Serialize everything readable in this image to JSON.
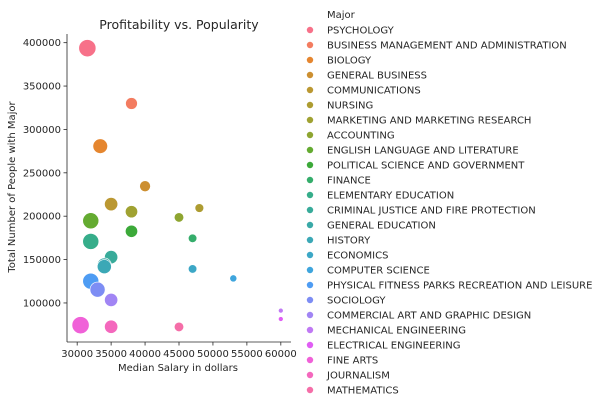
{
  "chart_data": {
    "type": "scatter",
    "title": "Profitability vs. Popularity",
    "xlabel": "Median Salary in dollars",
    "ylabel": "Total Number of People with Major",
    "xlim": [
      28500,
      61500
    ],
    "ylim": [
      55000,
      410000
    ],
    "xticks": [
      "30000",
      "35000",
      "40000",
      "45000",
      "50000",
      "55000",
      "60000"
    ],
    "yticks": [
      "100000",
      "150000",
      "200000",
      "250000",
      "300000",
      "350000",
      "400000"
    ],
    "grid": false,
    "legend_title": "Major",
    "legend_position": "outside-right",
    "series": [
      {
        "name": "PSYCHOLOGY",
        "color": "#f77189",
        "points": [
          {
            "x": 31500,
            "y": 393700,
            "size": 1.0
          }
        ]
      },
      {
        "name": "BUSINESS MANAGEMENT AND ADMINISTRATION",
        "color": "#f37c60",
        "points": [
          {
            "x": 38000,
            "y": 329900,
            "size": 0.62
          }
        ]
      },
      {
        "name": "BIOLOGY",
        "color": "#e5862f",
        "points": [
          {
            "x": 33400,
            "y": 280700,
            "size": 0.82
          }
        ]
      },
      {
        "name": "GENERAL BUSINESS",
        "color": "#cc8f31",
        "points": [
          {
            "x": 40000,
            "y": 234600,
            "size": 0.55
          }
        ]
      },
      {
        "name": "COMMUNICATIONS",
        "color": "#bb9832",
        "points": [
          {
            "x": 35000,
            "y": 213900,
            "size": 0.72
          }
        ]
      },
      {
        "name": "NURSING",
        "color": "#ad9c31",
        "points": [
          {
            "x": 48000,
            "y": 209400,
            "size": 0.4
          }
        ]
      },
      {
        "name": "MARKETING AND MARKETING RESEARCH",
        "color": "#a0a232",
        "points": [
          {
            "x": 38000,
            "y": 205200,
            "size": 0.65
          }
        ]
      },
      {
        "name": "ACCOUNTING",
        "color": "#8ea531",
        "points": [
          {
            "x": 45000,
            "y": 198600,
            "size": 0.45
          }
        ]
      },
      {
        "name": "ENGLISH LANGUAGE AND LITERATURE",
        "color": "#64ab31",
        "points": [
          {
            "x": 32000,
            "y": 194700,
            "size": 0.92
          }
        ]
      },
      {
        "name": "POLITICAL SCIENCE AND GOVERNMENT",
        "color": "#3ca939",
        "points": [
          {
            "x": 38000,
            "y": 182600,
            "size": 0.65
          }
        ]
      },
      {
        "name": "FINANCE",
        "color": "#35ad6b",
        "points": [
          {
            "x": 47000,
            "y": 174500,
            "size": 0.38
          }
        ]
      },
      {
        "name": "ELEMENTARY EDUCATION",
        "color": "#36ad8a",
        "points": [
          {
            "x": 32000,
            "y": 170900,
            "size": 0.92
          }
        ]
      },
      {
        "name": "CRIMINAL JUSTICE AND FIRE PROTECTION",
        "color": "#38ab9a",
        "points": [
          {
            "x": 35000,
            "y": 152800,
            "size": 0.72
          }
        ]
      },
      {
        "name": "GENERAL EDUCATION",
        "color": "#39a9a7",
        "points": [
          {
            "x": 34000,
            "y": 143700,
            "size": 0.78
          }
        ]
      },
      {
        "name": "HISTORY",
        "color": "#3ba8b6",
        "points": [
          {
            "x": 34000,
            "y": 141900,
            "size": 0.78
          }
        ]
      },
      {
        "name": "ECONOMICS",
        "color": "#3ca7c6",
        "points": [
          {
            "x": 47000,
            "y": 139200,
            "size": 0.38
          }
        ]
      },
      {
        "name": "COMPUTER SCIENCE",
        "color": "#3fa5dd",
        "points": [
          {
            "x": 53000,
            "y": 128300,
            "size": 0.28
          }
        ]
      },
      {
        "name": "PHYSICAL FITNESS PARKS RECREATION AND LEISURE",
        "color": "#4e9cf3",
        "points": [
          {
            "x": 32000,
            "y": 125100,
            "size": 0.92
          }
        ]
      },
      {
        "name": "SOCIOLOGY",
        "color": "#7d8df4",
        "points": [
          {
            "x": 33000,
            "y": 115400,
            "size": 0.85
          }
        ]
      },
      {
        "name": "COMMERCIAL ART AND GRAPHIC DESIGN",
        "color": "#a185f4",
        "points": [
          {
            "x": 35000,
            "y": 103500,
            "size": 0.72
          }
        ]
      },
      {
        "name": "MECHANICAL ENGINEERING",
        "color": "#c079f4",
        "points": [
          {
            "x": 60000,
            "y": 91200,
            "size": 0.12
          }
        ]
      },
      {
        "name": "ELECTRICAL ENGINEERING",
        "color": "#e05ef4",
        "points": [
          {
            "x": 60000,
            "y": 81500,
            "size": 0.12
          }
        ]
      },
      {
        "name": "FINE ARTS",
        "color": "#f061d8",
        "points": [
          {
            "x": 30500,
            "y": 74400,
            "size": 1.0
          }
        ]
      },
      {
        "name": "JOURNALISM",
        "color": "#f468bd",
        "points": [
          {
            "x": 35000,
            "y": 72600,
            "size": 0.72
          }
        ]
      },
      {
        "name": "MATHEMATICS",
        "color": "#f56ea8",
        "points": [
          {
            "x": 45000,
            "y": 72400,
            "size": 0.45
          }
        ]
      }
    ]
  }
}
